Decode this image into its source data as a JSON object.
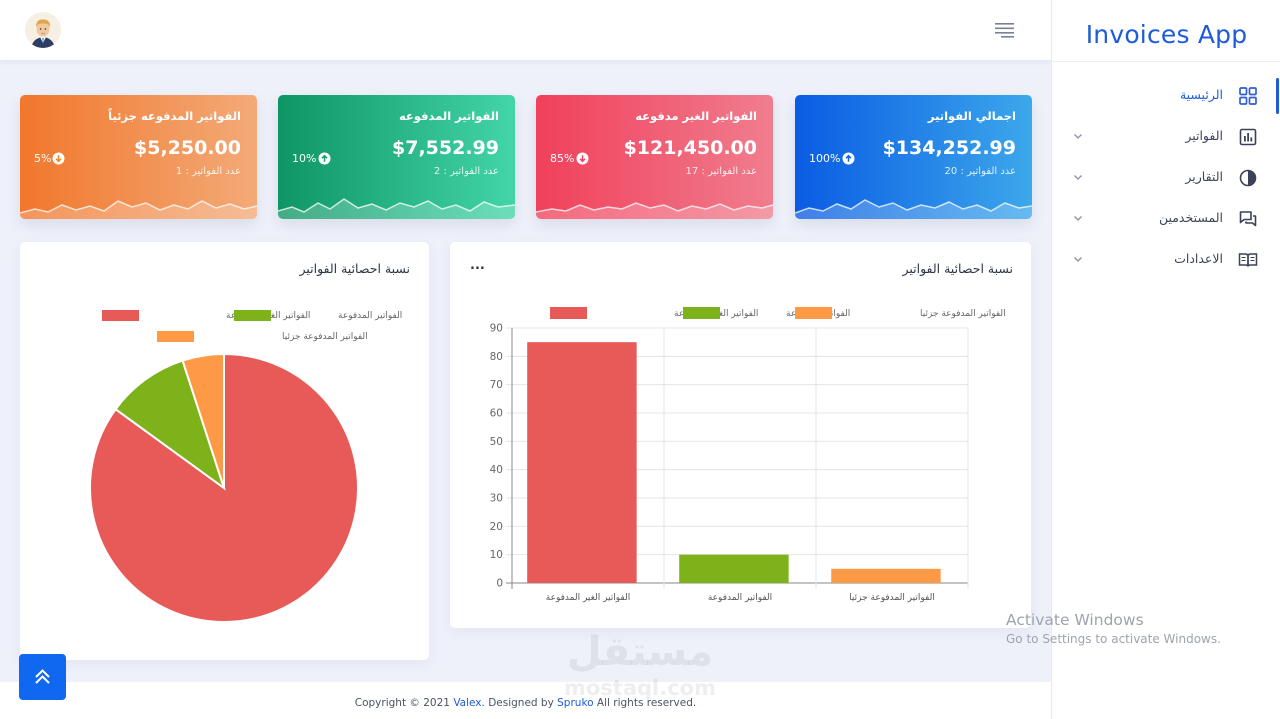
{
  "app": {
    "title": "Invoices App"
  },
  "colors": {
    "accent": "#1e5bd8",
    "card_orange": [
      "#f1792f",
      "#f3a876"
    ],
    "card_green": [
      "#0f9b67",
      "#3fd0a4"
    ],
    "card_red": [
      "#f1455f",
      "#f07a8c"
    ],
    "card_blue": [
      "#0a5ee4",
      "#3aa2ea"
    ],
    "series_unpaid": "#e85a58",
    "series_paid": "#7eb21a",
    "series_partial": "#fe9a45"
  },
  "sidebar": {
    "items": [
      {
        "label": "الرئيسية",
        "icon": "dashboard-grid-icon",
        "active": true
      },
      {
        "label": "الفواتير",
        "icon": "bar-chart-icon",
        "active": false
      },
      {
        "label": "التقارير",
        "icon": "pie-chart-icon",
        "active": false
      },
      {
        "label": "المستخدمين",
        "icon": "chat-icon",
        "active": false
      },
      {
        "label": "الاعدادات",
        "icon": "book-icon",
        "active": false
      }
    ]
  },
  "header": {
    "menu_icon": "hamburger-icon",
    "avatar": "user-avatar"
  },
  "cards": [
    {
      "title": "الفواتير المدفوعه جزئياً",
      "value": "$5,250.00",
      "count_label": "عدد الفواتير : 1",
      "percent": "5%",
      "trend": "down"
    },
    {
      "title": "الفواتير المدفوعه",
      "value": "$7,552.99",
      "count_label": "عدد الفواتير : 2",
      "percent": "10%",
      "trend": "up"
    },
    {
      "title": "الفواتير الغير مدفوعه",
      "value": "$121,450.00",
      "count_label": "عدد الفواتير : 17",
      "percent": "85%",
      "trend": "down"
    },
    {
      "title": "اجمالي الفواتير",
      "value": "$134,252.99",
      "count_label": "عدد الفواتير : 20",
      "percent": "100%",
      "trend": "up"
    }
  ],
  "pie_panel": {
    "title": "نسبة احصائية الفواتير",
    "legend": [
      "الفواتير الغير المدفوعة",
      "الفواتير المدفوعة",
      "الفواتير المدفوعة جزئيا"
    ]
  },
  "bar_panel": {
    "title": "نسبة احصائية الفواتير",
    "menu": "...",
    "legend": [
      "الفواتير الغير المدفوعة",
      "الفواتير المدفوعة",
      "الفواتير المدفوعة جزئيا"
    ]
  },
  "chart_data": [
    {
      "type": "pie",
      "categories": [
        "الفواتير الغير المدفوعة",
        "الفواتير المدفوعة",
        "الفواتير المدفوعة جزئيا"
      ],
      "values": [
        85,
        10,
        5
      ],
      "colors": [
        "#e85a58",
        "#7eb21a",
        "#fe9a45"
      ],
      "legend": "top"
    },
    {
      "type": "bar",
      "categories": [
        "الفواتير الغير المدفوعة",
        "الفواتير المدفوعة",
        "الفواتير المدفوعة جزئيا"
      ],
      "values": [
        85,
        10,
        5
      ],
      "colors": [
        "#e85a58",
        "#7eb21a",
        "#fe9a45"
      ],
      "ylim": [
        0,
        90
      ],
      "yticks": [
        0,
        10,
        20,
        30,
        40,
        50,
        60,
        70,
        80,
        90
      ],
      "grid": true,
      "legend": "top"
    }
  ],
  "scroll_top": {
    "icon": "double-chevron-up-icon"
  },
  "footer": {
    "prefix": "Copyright © 2021 ",
    "brand": "Valex",
    "middle": ". Designed by ",
    "designer": "Spruko",
    "suffix": " All rights reserved."
  },
  "overlay": {
    "activate_title": "Activate Windows",
    "activate_sub": "Go to Settings to activate Windows.",
    "watermark_top": "مستقل",
    "watermark_bottom": "mostaql.com"
  }
}
